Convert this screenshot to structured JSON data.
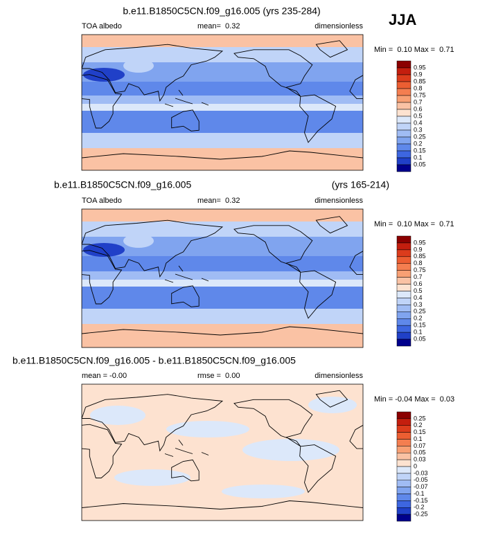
{
  "season": "JJA",
  "panels": [
    {
      "title": "b.e11.B1850C5CN.f09_g16.005 (yrs 235-284)",
      "left": "TOA albedo",
      "center": "mean=  0.32",
      "right": "dimensionless",
      "minmax": "Min =  0.10 Max =  0.71",
      "colorbar": {
        "labels": [
          0.95,
          0.9,
          0.85,
          0.8,
          0.75,
          0.7,
          0.6,
          0.5,
          0.4,
          0.3,
          0.25,
          0.2,
          0.15,
          0.1,
          0.05
        ],
        "colors": [
          "#8b0000",
          "#c41e0e",
          "#dc3c1c",
          "#ec5e32",
          "#f47e50",
          "#f8a074",
          "#fac2a4",
          "#fde2d0",
          "#dce8fa",
          "#c0d4f8",
          "#a0bcf4",
          "#80a4ef",
          "#5f88ea",
          "#3d66e0",
          "#2040c8",
          "#00008c"
        ]
      }
    },
    {
      "title": "b.e11.B1850C5CN.f09_g16.005",
      "title_right": "(yrs 165-214)",
      "left": "TOA albedo",
      "center": "mean=  0.32",
      "right": "dimensionless",
      "minmax": "Min =  0.10 Max =  0.71",
      "colorbar": {
        "labels": [
          0.95,
          0.9,
          0.85,
          0.8,
          0.75,
          0.7,
          0.6,
          0.5,
          0.4,
          0.3,
          0.25,
          0.2,
          0.15,
          0.1,
          0.05
        ],
        "colors": [
          "#8b0000",
          "#c41e0e",
          "#dc3c1c",
          "#ec5e32",
          "#f47e50",
          "#f8a074",
          "#fac2a4",
          "#fde2d0",
          "#dce8fa",
          "#c0d4f8",
          "#a0bcf4",
          "#80a4ef",
          "#5f88ea",
          "#3d66e0",
          "#2040c8",
          "#00008c"
        ]
      }
    },
    {
      "title": "b.e11.B1850C5CN.f09_g16.005 - b.e11.B1850C5CN.f09_g16.005",
      "left": "mean = -0.00",
      "center": "rmse =  0.00",
      "right": "dimensionless",
      "minmax": "Min = -0.04 Max =  0.03",
      "colorbar": {
        "labels": [
          0.25,
          0.2,
          0.15,
          0.1,
          0.07,
          0.05,
          0.03,
          0,
          -0.03,
          -0.05,
          -0.07,
          -0.1,
          -0.15,
          -0.2,
          -0.25
        ],
        "colors": [
          "#8b0000",
          "#c41e0e",
          "#dc3c1c",
          "#ec5e32",
          "#f47e50",
          "#f8a074",
          "#fac2a4",
          "#fde2d0",
          "#dce8fa",
          "#c0d4f8",
          "#a0bcf4",
          "#80a4ef",
          "#5f88ea",
          "#3d66e0",
          "#2040c8",
          "#00008c"
        ]
      }
    }
  ]
}
